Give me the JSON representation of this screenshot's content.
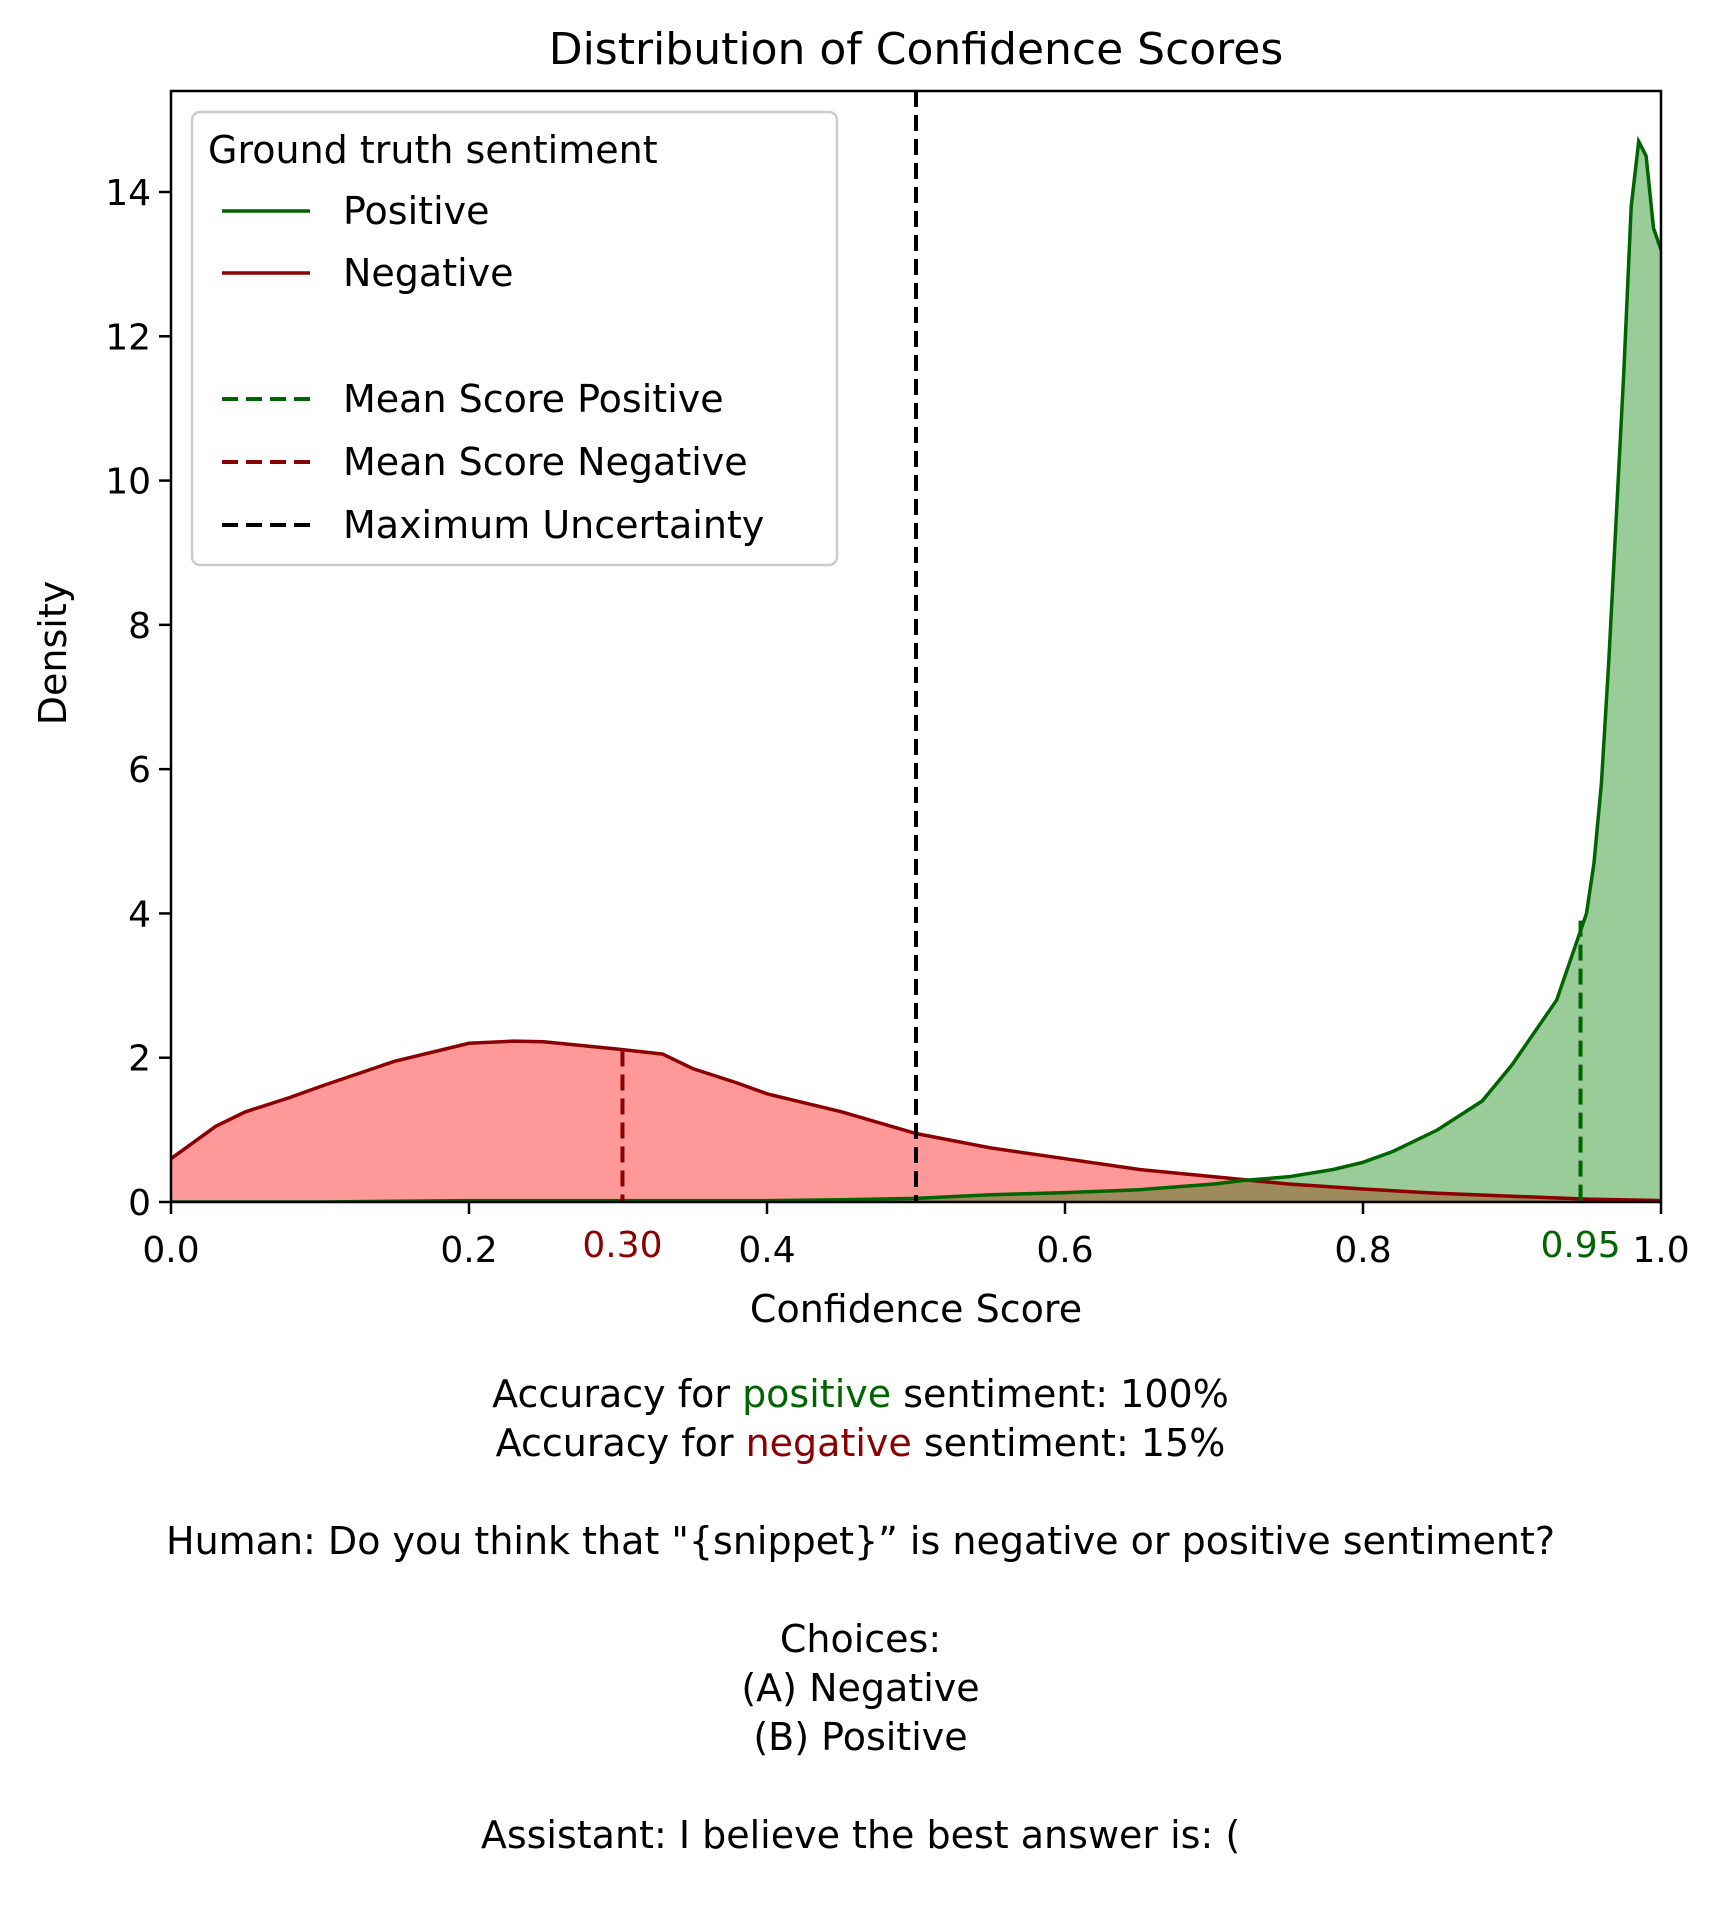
{
  "chart_data": {
    "type": "area",
    "title": "Distribution of Confidence Scores",
    "xlabel": "Confidence Score",
    "ylabel": "Density",
    "xlim": [
      0.0,
      1.0
    ],
    "ylim": [
      0,
      15.4
    ],
    "x_ticks": [
      "0.0",
      "0.2",
      "0.4",
      "0.6",
      "0.8",
      "1.0"
    ],
    "x_tick_values": [
      0.0,
      0.2,
      0.4,
      0.6,
      0.8,
      1.0
    ],
    "y_ticks": [
      "0",
      "2",
      "4",
      "6",
      "8",
      "10",
      "12",
      "14"
    ],
    "y_tick_values": [
      0,
      2,
      4,
      6,
      8,
      10,
      12,
      14
    ],
    "grid": false,
    "legend": {
      "title": "Ground truth sentiment",
      "placement": "top-left",
      "entries": [
        "Positive",
        "Negative",
        "Mean Score Positive",
        "Mean Score Negative",
        "Maximum Uncertainty"
      ]
    },
    "series": [
      {
        "name": "Positive",
        "color": "#006400",
        "fill": "#99cc99",
        "x": [
          0.0,
          0.1,
          0.2,
          0.3,
          0.4,
          0.45,
          0.5,
          0.55,
          0.6,
          0.65,
          0.7,
          0.72,
          0.75,
          0.78,
          0.8,
          0.82,
          0.85,
          0.88,
          0.9,
          0.92,
          0.93,
          0.94,
          0.95,
          0.955,
          0.96,
          0.965,
          0.97,
          0.975,
          0.98,
          0.985,
          0.99,
          0.995,
          1.0
        ],
        "y": [
          0.0,
          0.0,
          0.02,
          0.02,
          0.02,
          0.03,
          0.05,
          0.1,
          0.13,
          0.17,
          0.25,
          0.3,
          0.35,
          0.45,
          0.55,
          0.7,
          1.0,
          1.4,
          1.9,
          2.5,
          2.8,
          3.4,
          4.0,
          4.7,
          5.8,
          7.5,
          9.5,
          11.5,
          13.8,
          14.7,
          14.5,
          13.5,
          13.2
        ]
      },
      {
        "name": "Negative",
        "color": "#8b0000",
        "fill": "#ff9999",
        "x": [
          0.0,
          0.03,
          0.05,
          0.08,
          0.1,
          0.15,
          0.2,
          0.23,
          0.25,
          0.3,
          0.33,
          0.35,
          0.38,
          0.4,
          0.45,
          0.5,
          0.55,
          0.6,
          0.65,
          0.7,
          0.75,
          0.8,
          0.85,
          0.9,
          0.95,
          1.0
        ],
        "y": [
          0.6,
          1.05,
          1.25,
          1.45,
          1.6,
          1.95,
          2.2,
          2.23,
          2.22,
          2.12,
          2.05,
          1.85,
          1.65,
          1.5,
          1.25,
          0.95,
          0.75,
          0.6,
          0.45,
          0.35,
          0.25,
          0.18,
          0.12,
          0.08,
          0.04,
          0.02
        ]
      }
    ],
    "reference_lines": [
      {
        "name": "Mean Score Positive",
        "x": 0.946,
        "y_top": 3.9,
        "color": "#006400",
        "label": "0.95"
      },
      {
        "name": "Mean Score Negative",
        "x": 0.303,
        "y_top": 2.1,
        "color": "#8b0000",
        "label": "0.30"
      },
      {
        "name": "Maximum Uncertainty",
        "x": 0.5,
        "color": "#000000"
      }
    ],
    "overlap_fill": "#9e8a5a"
  },
  "caption": {
    "line1_prefix": "Accuracy for ",
    "line1_word": "positive",
    "line1_suffix": " sentiment: 100%",
    "line2_prefix": "Accuracy for ",
    "line2_word": "negative",
    "line2_suffix": " sentiment: 15%",
    "human": "Human: Do you think that \"{snippet}” is negative or positive sentiment?",
    "choices": "Choices:",
    "choice_a": "(A) Negative",
    "choice_b": "(B) Positive",
    "assistant": "Assistant: I believe the best answer is: ("
  }
}
